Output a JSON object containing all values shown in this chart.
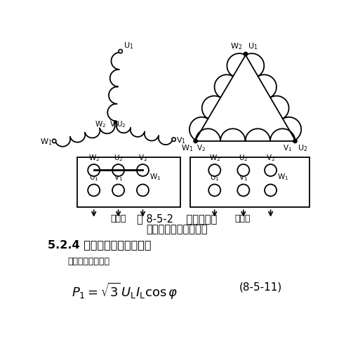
{
  "fig_width": 4.93,
  "fig_height": 5.0,
  "dpi": 100,
  "bg_color": "#ffffff",
  "title_line1": "图 8-5-2    定子绕组的",
  "title_line2": "星形联接和三角形联接",
  "section_heading": "5.2.4 功率、效率和功率因数",
  "sub_text": "电动机的输入功率",
  "formula_label": "(8-5-11)"
}
